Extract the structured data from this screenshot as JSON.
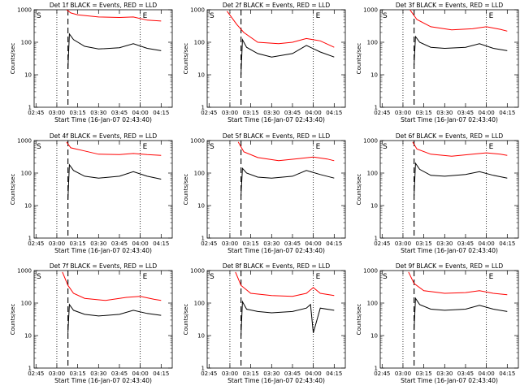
{
  "chart_data": [
    {
      "type": "line",
      "title": "Det 1f  BLACK = Events, RED = LLD",
      "xlabel": "Start Time (16-Jan-07 02:43:40)",
      "ylabel": "Counts/sec",
      "xticks": [
        "02:45",
        "03:00",
        "03:15",
        "03:30",
        "03:45",
        "04:00",
        "04:15"
      ],
      "yticks": [
        "1",
        "10",
        "100",
        "1000"
      ],
      "yscale": "log",
      "ylim": [
        1,
        1000
      ],
      "xlim": [
        "02:43:40",
        "04:23:00"
      ],
      "markers": [
        "S",
        "E"
      ],
      "vlines": [
        {
          "time": "03:00",
          "style": "dotted"
        },
        {
          "time": "03:08",
          "style": "dashed"
        },
        {
          "time": "04:00",
          "style": "dotted"
        }
      ],
      "series": [
        {
          "color": "#ff0000",
          "x": [
            "03:07",
            "03:10",
            "03:15",
            "03:30",
            "03:45",
            "03:55",
            "04:05",
            "04:15"
          ],
          "values": [
            1000,
            800,
            700,
            600,
            580,
            600,
            480,
            450
          ]
        },
        {
          "color": "#000000",
          "x": [
            "03:08",
            "03:09",
            "03:12",
            "03:20",
            "03:30",
            "03:45",
            "03:55",
            "04:05",
            "04:15"
          ],
          "values": [
            15,
            180,
            120,
            75,
            62,
            68,
            90,
            65,
            55
          ]
        }
      ]
    },
    {
      "type": "line",
      "title": "Det 2f  BLACK = Events, RED = LLD",
      "xlabel": "Start Time (16-Jan-07 02:43:40)",
      "ylabel": "Counts/sec",
      "xticks": [
        "02:45",
        "03:00",
        "03:15",
        "03:30",
        "03:45",
        "04:00",
        "04:15"
      ],
      "yticks": [
        "1",
        "10",
        "100",
        "1000"
      ],
      "yscale": "log",
      "ylim": [
        1,
        1000
      ],
      "xlim": [
        "02:43:40",
        "04:23:00"
      ],
      "markers": [
        "S",
        "E"
      ],
      "vlines": [
        {
          "time": "03:00",
          "style": "dotted"
        },
        {
          "time": "03:08",
          "style": "dashed"
        },
        {
          "time": "04:00",
          "style": "dotted"
        }
      ],
      "series": [
        {
          "color": "#ff0000",
          "x": [
            "02:58",
            "03:05",
            "03:10",
            "03:20",
            "03:35",
            "03:45",
            "03:55",
            "04:05",
            "04:15"
          ],
          "values": [
            900,
            350,
            200,
            100,
            90,
            100,
            130,
            110,
            70
          ]
        },
        {
          "color": "#000000",
          "x": [
            "03:08",
            "03:09",
            "03:12",
            "03:20",
            "03:30",
            "03:45",
            "03:55",
            "04:05",
            "04:15"
          ],
          "values": [
            10,
            120,
            70,
            45,
            35,
            45,
            80,
            50,
            35
          ]
        }
      ]
    },
    {
      "type": "line",
      "title": "Det 3f  BLACK = Events, RED = LLD",
      "xlabel": "Start Time (16-Jan-07 02:43:40)",
      "ylabel": "Counts/sec",
      "xticks": [
        "02:45",
        "03:00",
        "03:15",
        "03:30",
        "03:45",
        "04:00",
        "04:15"
      ],
      "yticks": [
        "1",
        "10",
        "100",
        "1000"
      ],
      "yscale": "log",
      "ylim": [
        1,
        1000
      ],
      "xlim": [
        "02:43:40",
        "04:23:00"
      ],
      "markers": [
        "S",
        "E"
      ],
      "vlines": [
        {
          "time": "03:00",
          "style": "dotted"
        },
        {
          "time": "03:08",
          "style": "dashed"
        },
        {
          "time": "04:00",
          "style": "dotted"
        }
      ],
      "series": [
        {
          "color": "#ff0000",
          "x": [
            "03:05",
            "03:10",
            "03:20",
            "03:35",
            "03:50",
            "04:00",
            "04:10",
            "04:15"
          ],
          "values": [
            1000,
            500,
            300,
            240,
            260,
            300,
            250,
            220
          ]
        },
        {
          "color": "#000000",
          "x": [
            "03:08",
            "03:09",
            "03:12",
            "03:20",
            "03:30",
            "03:45",
            "03:55",
            "04:05",
            "04:15"
          ],
          "values": [
            20,
            150,
            100,
            70,
            65,
            70,
            90,
            65,
            55
          ]
        }
      ]
    },
    {
      "type": "line",
      "title": "Det 4f  BLACK = Events, RED = LLD",
      "xlabel": "Start Time (16-Jan-07 02:43:40)",
      "ylabel": "Counts/sec",
      "xticks": [
        "02:45",
        "03:00",
        "03:15",
        "03:30",
        "03:45",
        "04:00",
        "04:15"
      ],
      "yticks": [
        "1",
        "10",
        "100",
        "1000"
      ],
      "yscale": "log",
      "ylim": [
        1,
        1000
      ],
      "xlim": [
        "02:43:40",
        "04:23:00"
      ],
      "markers": [
        "S",
        "E"
      ],
      "vlines": [
        {
          "time": "03:00",
          "style": "dotted"
        },
        {
          "time": "03:08",
          "style": "dashed"
        },
        {
          "time": "04:00",
          "style": "dotted"
        }
      ],
      "series": [
        {
          "color": "#ff0000",
          "x": [
            "03:07",
            "03:10",
            "03:20",
            "03:30",
            "03:45",
            "03:55",
            "04:05",
            "04:15"
          ],
          "values": [
            900,
            600,
            480,
            380,
            370,
            400,
            370,
            350
          ]
        },
        {
          "color": "#000000",
          "x": [
            "03:08",
            "03:09",
            "03:12",
            "03:20",
            "03:30",
            "03:45",
            "03:55",
            "04:05",
            "04:15"
          ],
          "values": [
            15,
            180,
            120,
            80,
            70,
            80,
            110,
            80,
            65
          ]
        }
      ]
    },
    {
      "type": "line",
      "title": "Det 5f  BLACK = Events, RED = LLD",
      "xlabel": "Start Time (16-Jan-07 02:43:40)",
      "ylabel": "Counts/sec",
      "xticks": [
        "02:45",
        "03:00",
        "03:15",
        "03:30",
        "03:45",
        "04:00",
        "04:15"
      ],
      "yticks": [
        "1",
        "10",
        "100",
        "1000"
      ],
      "yscale": "log",
      "ylim": [
        1,
        1000
      ],
      "xlim": [
        "02:43:40",
        "04:23:00"
      ],
      "markers": [
        "S",
        "E"
      ],
      "vlines": [
        {
          "time": "03:00",
          "style": "dotted"
        },
        {
          "time": "03:08",
          "style": "dashed"
        },
        {
          "time": "04:00",
          "style": "dotted"
        }
      ],
      "series": [
        {
          "color": "#ff0000",
          "x": [
            "03:06",
            "03:10",
            "03:20",
            "03:35",
            "03:50",
            "04:00",
            "04:10",
            "04:15"
          ],
          "values": [
            900,
            450,
            300,
            240,
            280,
            310,
            270,
            240
          ]
        },
        {
          "color": "#000000",
          "x": [
            "03:08",
            "03:09",
            "03:12",
            "03:20",
            "03:30",
            "03:45",
            "03:55",
            "04:05",
            "04:15"
          ],
          "values": [
            20,
            140,
            100,
            75,
            70,
            80,
            120,
            90,
            70
          ]
        }
      ]
    },
    {
      "type": "line",
      "title": "Det 6f  BLACK = Events, RED = LLD",
      "xlabel": "Start Time (16-Jan-07 02:43:40)",
      "ylabel": "Counts/sec",
      "xticks": [
        "02:45",
        "03:00",
        "03:15",
        "03:30",
        "03:45",
        "04:00",
        "04:15"
      ],
      "yticks": [
        "1",
        "10",
        "100",
        "1000"
      ],
      "yscale": "log",
      "ylim": [
        1,
        1000
      ],
      "xlim": [
        "02:43:40",
        "04:23:00"
      ],
      "markers": [
        "S",
        "E"
      ],
      "vlines": [
        {
          "time": "03:00",
          "style": "dotted"
        },
        {
          "time": "03:08",
          "style": "dashed"
        },
        {
          "time": "04:00",
          "style": "dotted"
        }
      ],
      "series": [
        {
          "color": "#ff0000",
          "x": [
            "03:07",
            "03:10",
            "03:20",
            "03:35",
            "03:50",
            "04:00",
            "04:10",
            "04:15"
          ],
          "values": [
            900,
            550,
            380,
            330,
            380,
            420,
            380,
            350
          ]
        },
        {
          "color": "#000000",
          "x": [
            "03:08",
            "03:09",
            "03:12",
            "03:20",
            "03:30",
            "03:45",
            "03:55",
            "04:05",
            "04:15"
          ],
          "values": [
            20,
            200,
            130,
            85,
            80,
            90,
            110,
            85,
            70
          ]
        }
      ]
    },
    {
      "type": "line",
      "title": "Det 7f  BLACK = Events, RED = LLD",
      "xlabel": "Start Time (16-Jan-07 02:43:40)",
      "ylabel": "Counts/sec",
      "xticks": [
        "02:45",
        "03:00",
        "03:15",
        "03:30",
        "03:45",
        "04:00",
        "04:15"
      ],
      "yticks": [
        "1",
        "10",
        "100",
        "1000"
      ],
      "yscale": "log",
      "ylim": [
        1,
        1000
      ],
      "xlim": [
        "02:43:40",
        "04:23:00"
      ],
      "markers": [
        "S",
        "E"
      ],
      "vlines": [
        {
          "time": "03:00",
          "style": "dotted"
        },
        {
          "time": "03:08",
          "style": "dashed"
        },
        {
          "time": "04:00",
          "style": "dotted"
        }
      ],
      "series": [
        {
          "color": "#ff0000",
          "x": [
            "03:04",
            "03:08",
            "03:12",
            "03:20",
            "03:35",
            "03:50",
            "04:00",
            "04:10",
            "04:15"
          ],
          "values": [
            900,
            350,
            200,
            140,
            120,
            150,
            160,
            130,
            120
          ]
        },
        {
          "color": "#000000",
          "x": [
            "03:08",
            "03:09",
            "03:12",
            "03:20",
            "03:30",
            "03:45",
            "03:55",
            "04:05",
            "04:15"
          ],
          "values": [
            12,
            90,
            60,
            45,
            40,
            45,
            60,
            48,
            42
          ]
        }
      ]
    },
    {
      "type": "line",
      "title": "Det 8f  BLACK = Events, RED = LLD",
      "xlabel": "Start Time (16-Jan-07 02:43:40)",
      "ylabel": "Counts/sec",
      "xticks": [
        "02:45",
        "03:00",
        "03:15",
        "03:30",
        "03:45",
        "04:00",
        "04:15"
      ],
      "yticks": [
        "1",
        "10",
        "100",
        "1000"
      ],
      "yscale": "log",
      "ylim": [
        1,
        1000
      ],
      "xlim": [
        "02:43:40",
        "04:23:00"
      ],
      "markers": [
        "S",
        "E"
      ],
      "vlines": [
        {
          "time": "03:00",
          "style": "dotted"
        },
        {
          "time": "03:08",
          "style": "dashed"
        },
        {
          "time": "04:00",
          "style": "dotted"
        }
      ],
      "series": [
        {
          "color": "#ff0000",
          "x": [
            "03:04",
            "03:08",
            "03:15",
            "03:30",
            "03:45",
            "03:55",
            "04:00",
            "04:05",
            "04:15"
          ],
          "values": [
            900,
            350,
            200,
            170,
            160,
            200,
            300,
            200,
            170
          ]
        },
        {
          "color": "#000000",
          "x": [
            "03:08",
            "03:09",
            "03:12",
            "03:20",
            "03:30",
            "03:45",
            "03:55",
            "03:58",
            "04:00",
            "04:05",
            "04:15"
          ],
          "values": [
            10,
            110,
            65,
            55,
            50,
            55,
            70,
            90,
            12,
            70,
            60
          ]
        }
      ]
    },
    {
      "type": "line",
      "title": "Det 9f  BLACK = Events, RED = LLD",
      "xlabel": "Start Time (16-Jan-07 02:43:40)",
      "ylabel": "Counts/sec",
      "xticks": [
        "02:45",
        "03:00",
        "03:15",
        "03:30",
        "03:45",
        "04:00",
        "04:15"
      ],
      "yticks": [
        "1",
        "10",
        "100",
        "1000"
      ],
      "yscale": "log",
      "ylim": [
        1,
        1000
      ],
      "xlim": [
        "02:43:40",
        "04:23:00"
      ],
      "markers": [
        "S",
        "E"
      ],
      "vlines": [
        {
          "time": "03:00",
          "style": "dotted"
        },
        {
          "time": "03:08",
          "style": "dashed"
        },
        {
          "time": "04:00",
          "style": "dotted"
        }
      ],
      "series": [
        {
          "color": "#ff0000",
          "x": [
            "03:04",
            "03:08",
            "03:15",
            "03:30",
            "03:45",
            "03:55",
            "04:05",
            "04:15"
          ],
          "values": [
            900,
            400,
            240,
            200,
            210,
            240,
            200,
            180
          ]
        },
        {
          "color": "#000000",
          "x": [
            "03:08",
            "03:09",
            "03:12",
            "03:20",
            "03:30",
            "03:45",
            "03:55",
            "04:05",
            "04:15"
          ],
          "values": [
            15,
            140,
            90,
            65,
            60,
            65,
            85,
            65,
            55
          ]
        }
      ]
    }
  ]
}
